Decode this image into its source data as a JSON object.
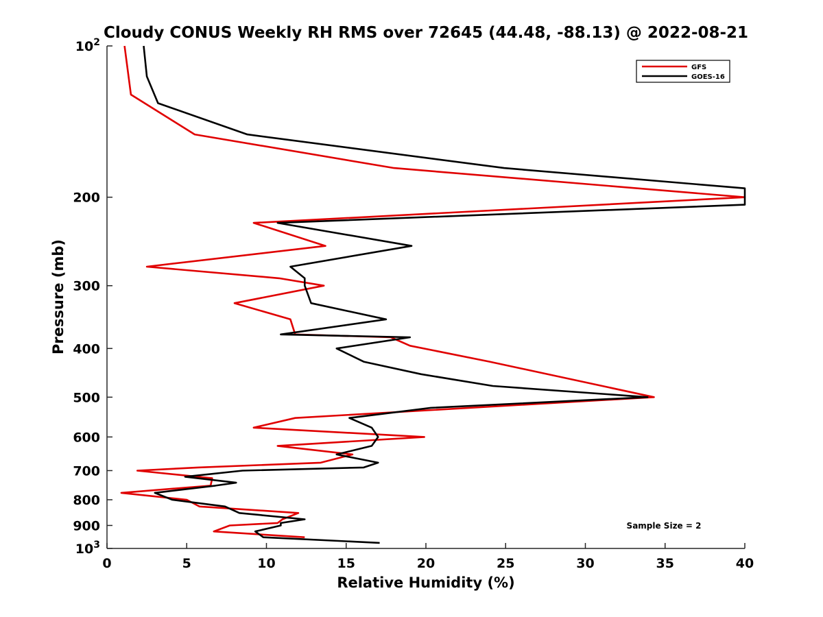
{
  "chart_data": {
    "type": "line",
    "title": "Cloudy CONUS Weekly RH RMS over 72645 (44.48, -88.13) @ 2022-08-21",
    "xlabel": "Relative Humidity (%)",
    "ylabel": "Pressure (mb)",
    "xlim": [
      0,
      40
    ],
    "ylim": [
      100,
      1000
    ],
    "y_scale": "log",
    "y_reversed": true,
    "grid": false,
    "legend_position": "top-right",
    "x_ticks": [
      {
        "value": 0,
        "label": "0"
      },
      {
        "value": 5,
        "label": "5"
      },
      {
        "value": 10,
        "label": "10"
      },
      {
        "value": 15,
        "label": "15"
      },
      {
        "value": 20,
        "label": "20"
      },
      {
        "value": 25,
        "label": "25"
      },
      {
        "value": 30,
        "label": "30"
      },
      {
        "value": 35,
        "label": "35"
      },
      {
        "value": 40,
        "label": "40"
      }
    ],
    "y_ticks": [
      {
        "value": 100,
        "base": "10",
        "exp": "2"
      },
      {
        "value": 200,
        "label": "200"
      },
      {
        "value": 300,
        "label": "300"
      },
      {
        "value": 400,
        "label": "400"
      },
      {
        "value": 500,
        "label": "500"
      },
      {
        "value": 600,
        "label": "600"
      },
      {
        "value": 700,
        "label": "700"
      },
      {
        "value": 800,
        "label": "800"
      },
      {
        "value": 900,
        "label": "900"
      },
      {
        "value": 1000,
        "base": "10",
        "exp": "3"
      }
    ],
    "series": [
      {
        "name": "GFS",
        "color": "#e00000",
        "points": [
          [
            1.1,
            100
          ],
          [
            1.5,
            125
          ],
          [
            5.5,
            150
          ],
          [
            18.0,
            175
          ],
          [
            40,
            200
          ],
          [
            9.2,
            225
          ],
          [
            13.7,
            250
          ],
          [
            2.5,
            275
          ],
          [
            10.8,
            290
          ],
          [
            13.6,
            300
          ],
          [
            8.0,
            325
          ],
          [
            11.5,
            350
          ],
          [
            11.8,
            375
          ],
          [
            17.8,
            380
          ],
          [
            19.0,
            395
          ],
          [
            24.0,
            425
          ],
          [
            34.3,
            500
          ],
          [
            11.8,
            550
          ],
          [
            9.2,
            575
          ],
          [
            19.9,
            600
          ],
          [
            10.7,
            625
          ],
          [
            15.4,
            650
          ],
          [
            13.4,
            675
          ],
          [
            5.7,
            690
          ],
          [
            1.9,
            700
          ],
          [
            6.6,
            725
          ],
          [
            6.5,
            750
          ],
          [
            0.9,
            775
          ],
          [
            5.0,
            800
          ],
          [
            5.8,
            825
          ],
          [
            12.0,
            850
          ],
          [
            11.0,
            875
          ],
          [
            10.7,
            890
          ],
          [
            7.7,
            900
          ],
          [
            6.7,
            925
          ],
          [
            12.4,
            950
          ]
        ]
      },
      {
        "name": "GOES-16",
        "color": "#000000",
        "points": [
          [
            2.3,
            100
          ],
          [
            2.5,
            115
          ],
          [
            3.2,
            130
          ],
          [
            8.8,
            150
          ],
          [
            24.9,
            175
          ],
          [
            40,
            192
          ],
          [
            40,
            207
          ],
          [
            10.7,
            225
          ],
          [
            19.1,
            250
          ],
          [
            11.5,
            275
          ],
          [
            12.4,
            290
          ],
          [
            12.4,
            300
          ],
          [
            12.8,
            325
          ],
          [
            17.5,
            350
          ],
          [
            10.9,
            375
          ],
          [
            19.0,
            380
          ],
          [
            14.4,
            400
          ],
          [
            16.1,
            425
          ],
          [
            19.7,
            450
          ],
          [
            24.2,
            475
          ],
          [
            33.9,
            500
          ],
          [
            20.3,
            525
          ],
          [
            15.2,
            550
          ],
          [
            16.6,
            575
          ],
          [
            17.0,
            600
          ],
          [
            16.6,
            625
          ],
          [
            14.4,
            650
          ],
          [
            17.0,
            675
          ],
          [
            16.1,
            690
          ],
          [
            8.5,
            700
          ],
          [
            4.9,
            720
          ],
          [
            8.1,
            740
          ],
          [
            6.8,
            750
          ],
          [
            3.0,
            775
          ],
          [
            4.1,
            800
          ],
          [
            7.4,
            825
          ],
          [
            8.3,
            850
          ],
          [
            12.4,
            875
          ],
          [
            10.9,
            890
          ],
          [
            10.9,
            900
          ],
          [
            9.3,
            925
          ],
          [
            9.8,
            950
          ],
          [
            17.1,
            975
          ]
        ]
      }
    ],
    "annotation": "Sample Size = 2"
  }
}
